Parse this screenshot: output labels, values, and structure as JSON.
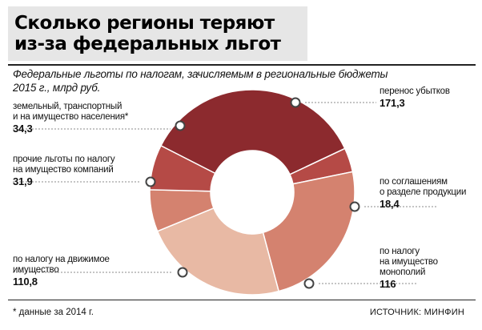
{
  "title": {
    "line1": "Сколько регионы теряют",
    "line2": "из-за федеральных льгот"
  },
  "subtitle": {
    "line1": "Федеральные льготы по налогам, зачисляемым в региональные бюджеты",
    "line2": "2015 г., млрд руб."
  },
  "chart_data": {
    "type": "pie",
    "donut": true,
    "title": "Федеральные льготы по налогам, зачисляемым в региональные бюджеты 2015 г., млрд руб.",
    "unit": "млрд руб.",
    "slices": [
      {
        "label": "перенос убытков",
        "value": 171.3,
        "value_text": "171,3",
        "color": "#8c2a2e"
      },
      {
        "label": "по соглашениям о разделе продукции",
        "value": 18.4,
        "value_text": "18,4",
        "color": "#b54a46"
      },
      {
        "label": "по налогу на имущество монополий",
        "value": 116,
        "value_text": "116",
        "color": "#d4826f"
      },
      {
        "label": "по налогу на движимое имущество",
        "value": 110.8,
        "value_text": "110,8",
        "color": "#e8b9a4"
      },
      {
        "label": "прочие льготы по налогу на имущество компаний",
        "value": 31.9,
        "value_text": "31,9",
        "color": "#d4826f"
      },
      {
        "label": "земельный, транспортный и на имущество населения*",
        "value": 34.3,
        "value_text": "34,3",
        "color": "#b54a46"
      }
    ]
  },
  "labels": {
    "perenos": {
      "text": "перенос убытков",
      "value": "171,3"
    },
    "srp": {
      "text1": "по соглашениям",
      "text2": "о разделе продукции",
      "value": "18,4"
    },
    "monopolii": {
      "text1": "по налогу",
      "text2": "на имущество",
      "text3": "монополий",
      "value": "116"
    },
    "dvizhimoe": {
      "text1": "по налогу на движимое",
      "text2": "имущество",
      "value": "110,8"
    },
    "prochie": {
      "text1": "прочие льготы по налогу",
      "text2": "на имущество компаний",
      "value": "31,9"
    },
    "zemelny": {
      "text1": "земельный, транспортный",
      "text2": "и на имущество населения*",
      "value": "34,3"
    }
  },
  "footnote": "* данные за 2014 г.",
  "source": "ИСТОЧНИК: МИНФИН"
}
